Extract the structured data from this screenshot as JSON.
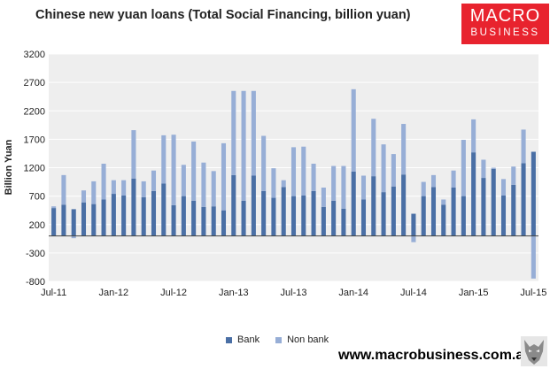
{
  "header": {
    "title": "Chinese new yuan loans (Total Social Financing, billion yuan)"
  },
  "logo": {
    "line1": "MACRO",
    "line2": "BUSINESS",
    "color": "#e8232e"
  },
  "footer": {
    "url": "www.macrobusiness.com.au"
  },
  "chart_data": {
    "type": "bar",
    "stacked": true,
    "ylabel": "Billion Yuan",
    "ylim": [
      -800,
      3200
    ],
    "yticks": [
      -800,
      -300,
      200,
      700,
      1200,
      1700,
      2200,
      2700,
      3200
    ],
    "grid": true,
    "legend_position": "bottom",
    "x_tick_labels": [
      "Jul-11",
      "Jan-12",
      "Jul-12",
      "Jan-13",
      "Jul-13",
      "Jan-14",
      "Jul-14",
      "Jan-15",
      "Jul-15"
    ],
    "categories": [
      "Jul-11",
      "Aug-11",
      "Sep-11",
      "Oct-11",
      "Nov-11",
      "Dec-11",
      "Jan-12",
      "Feb-12",
      "Mar-12",
      "Apr-12",
      "May-12",
      "Jun-12",
      "Jul-12",
      "Aug-12",
      "Sep-12",
      "Oct-12",
      "Nov-12",
      "Dec-12",
      "Jan-13",
      "Feb-13",
      "Mar-13",
      "Apr-13",
      "May-13",
      "Jun-13",
      "Jul-13",
      "Aug-13",
      "Sep-13",
      "Oct-13",
      "Nov-13",
      "Dec-13",
      "Jan-14",
      "Feb-14",
      "Mar-14",
      "Apr-14",
      "May-14",
      "Jun-14",
      "Jul-14",
      "Aug-14",
      "Sep-14",
      "Oct-14",
      "Nov-14",
      "Dec-14",
      "Jan-15",
      "Feb-15",
      "Mar-15",
      "Apr-15",
      "May-15",
      "Jun-15",
      "Jul-15"
    ],
    "series": [
      {
        "name": "Bank",
        "color": "#4a6fa5",
        "values": [
          490,
          550,
          470,
          590,
          560,
          640,
          740,
          710,
          1010,
          680,
          790,
          920,
          540,
          700,
          620,
          510,
          520,
          450,
          1070,
          620,
          1060,
          790,
          670,
          860,
          700,
          710,
          790,
          510,
          620,
          480,
          1130,
          640,
          1050,
          770,
          870,
          1080,
          390,
          700,
          860,
          550,
          850,
          700,
          1470,
          1020,
          1180,
          710,
          900,
          1280,
          1480
        ]
      },
      {
        "name": "Non bank",
        "color": "#97aed6",
        "values": [
          30,
          520,
          -40,
          210,
          400,
          630,
          240,
          270,
          850,
          280,
          360,
          850,
          1240,
          550,
          1040,
          780,
          620,
          1180,
          1480,
          1930,
          1490,
          970,
          520,
          120,
          860,
          860,
          480,
          340,
          610,
          750,
          1450,
          420,
          1010,
          840,
          570,
          890,
          -110,
          250,
          210,
          90,
          300,
          990,
          580,
          320,
          20,
          290,
          320,
          590,
          -750
        ]
      }
    ]
  }
}
